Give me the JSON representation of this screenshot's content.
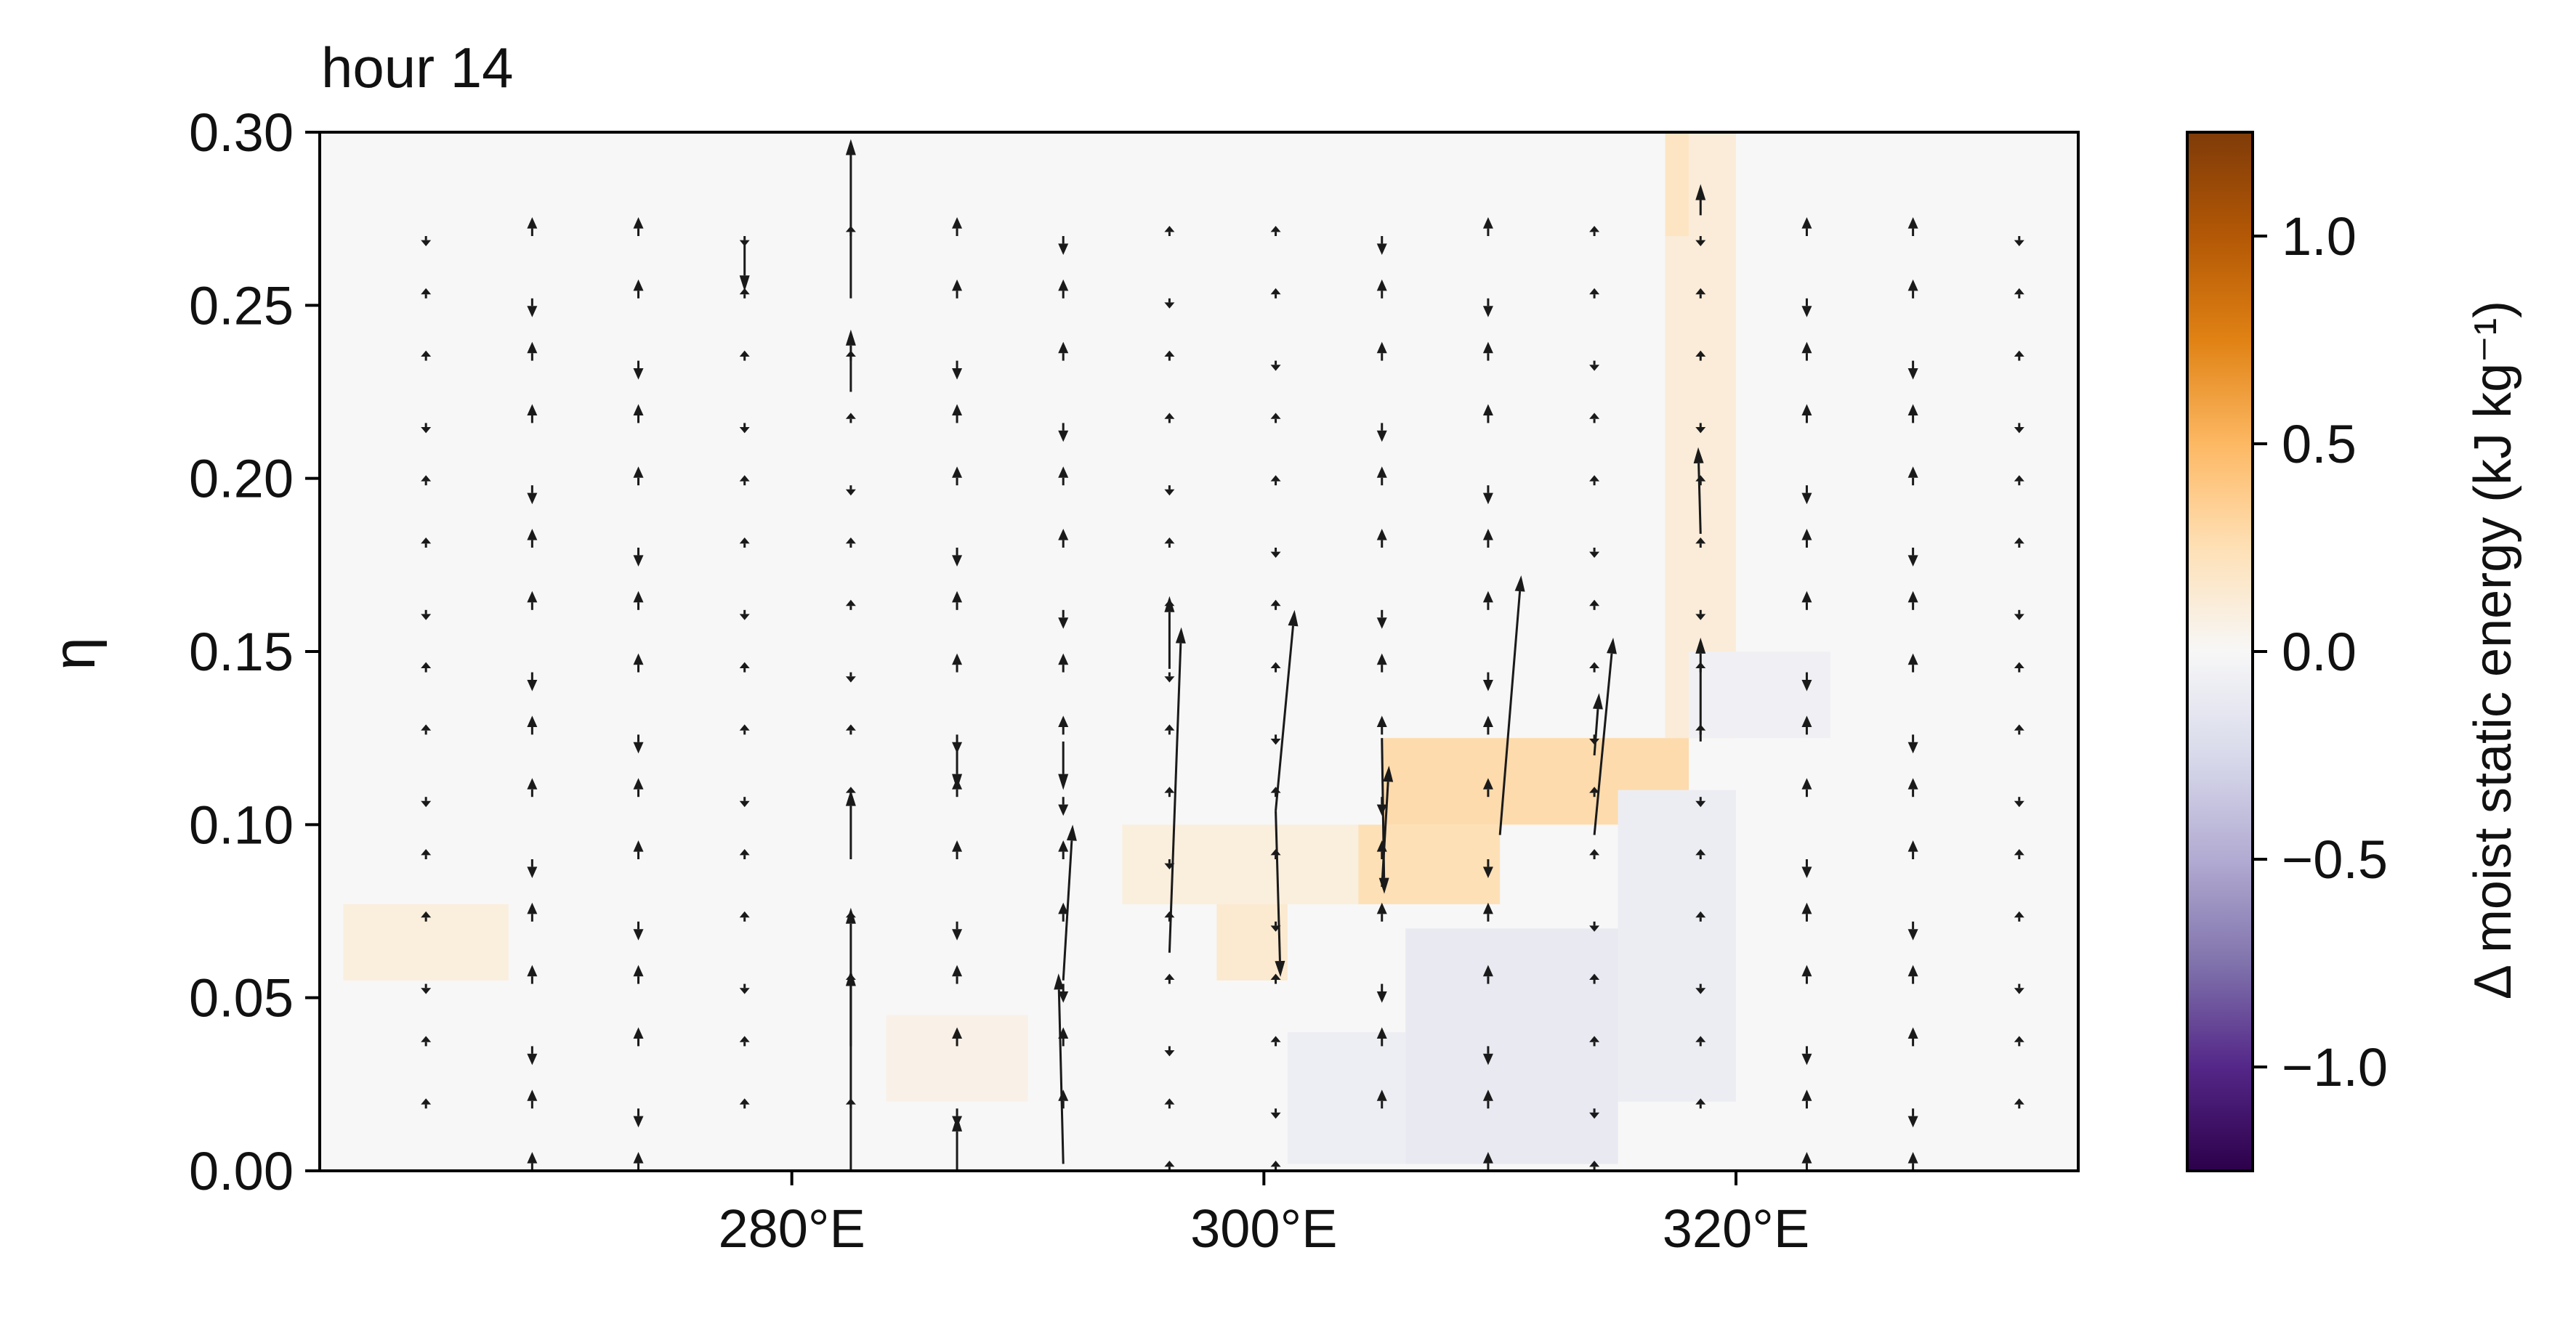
{
  "chart_data": {
    "type": "heatmap",
    "title": "hour 14",
    "xlabel": "",
    "ylabel": "η",
    "x_ticks": [
      "280°E",
      "300°E",
      "320°E"
    ],
    "x_tick_values": [
      280,
      300,
      320
    ],
    "y_ticks": [
      "0.00",
      "0.05",
      "0.10",
      "0.15",
      "0.20",
      "0.25",
      "0.30"
    ],
    "y_tick_values": [
      0.0,
      0.05,
      0.1,
      0.15,
      0.2,
      0.25,
      0.3
    ],
    "xlim": [
      260,
      334.5
    ],
    "ylim": [
      0.0,
      0.3
    ],
    "grid": false,
    "overlay": "quiver",
    "colorbar": {
      "label": "Δ moist static energy (kJ kg⁻¹)",
      "range": [
        -1.25,
        1.25
      ],
      "ticks": [
        "−1.0",
        "−0.5",
        "0.0",
        "0.5",
        "1.0"
      ],
      "tick_values": [
        -1.0,
        -0.5,
        0.0,
        0.5,
        1.0
      ],
      "colormap": "PuOr_r",
      "colors": [
        "#2d004b",
        "#542788",
        "#8073ac",
        "#b2abd2",
        "#d8daeb",
        "#f7f7f7",
        "#fee0b6",
        "#fdb863",
        "#e08214",
        "#b35806",
        "#7f3b08"
      ]
    },
    "heatmap_regions": [
      {
        "x0": 305,
        "x1": 318,
        "y0": 0.1,
        "y1": 0.125,
        "value": 0.28
      },
      {
        "x0": 304,
        "x1": 310,
        "y0": 0.077,
        "y1": 0.1,
        "value": 0.25
      },
      {
        "x0": 294,
        "x1": 304,
        "y0": 0.077,
        "y1": 0.1,
        "value": 0.1
      },
      {
        "x0": 298,
        "x1": 301,
        "y0": 0.055,
        "y1": 0.077,
        "value": 0.15
      },
      {
        "x0": 317,
        "x1": 320,
        "y0": 0.125,
        "y1": 0.3,
        "value": 0.12
      },
      {
        "x0": 317,
        "x1": 318,
        "y0": 0.27,
        "y1": 0.3,
        "value": 0.2
      },
      {
        "x0": 301,
        "x1": 306,
        "y0": 0.002,
        "y1": 0.04,
        "value": -0.08
      },
      {
        "x0": 306,
        "x1": 315,
        "y0": 0.002,
        "y1": 0.07,
        "value": -0.12
      },
      {
        "x0": 315,
        "x1": 320,
        "y0": 0.02,
        "y1": 0.11,
        "value": -0.09
      },
      {
        "x0": 318,
        "x1": 324,
        "y0": 0.125,
        "y1": 0.15,
        "value": -0.06
      },
      {
        "x0": 261,
        "x1": 268,
        "y0": 0.055,
        "y1": 0.077,
        "value": 0.1
      },
      {
        "x0": 284,
        "x1": 290,
        "y0": 0.02,
        "y1": 0.045,
        "value": 0.06
      }
    ],
    "quiver_x": [
      264.5,
      269,
      273.5,
      278,
      282.5,
      287,
      291.5,
      296,
      300.5,
      305,
      309.5,
      314,
      318.5,
      323,
      327.5,
      332
    ],
    "quiver_y": [
      0.0,
      0.018,
      0.036,
      0.054,
      0.072,
      0.09,
      0.108,
      0.126,
      0.144,
      0.162,
      0.18,
      0.198,
      0.216,
      0.234,
      0.252,
      0.27
    ],
    "quiver_arrows": [
      {
        "x": 282.5,
        "y": 0.0,
        "u": 0,
        "v": 0.058
      },
      {
        "x": 282.5,
        "y": 0.036,
        "u": 0,
        "v": 0.04
      },
      {
        "x": 282.5,
        "y": 0.09,
        "u": 0,
        "v": 0.02
      },
      {
        "x": 282.5,
        "y": 0.225,
        "u": 0,
        "v": 0.018
      },
      {
        "x": 282.5,
        "y": 0.252,
        "u": 0,
        "v": 0.046
      },
      {
        "x": 287,
        "y": 0.0,
        "u": 0,
        "v": 0.016
      },
      {
        "x": 287,
        "y": 0.124,
        "u": 0,
        "v": -0.014
      },
      {
        "x": 291.5,
        "y": 0.002,
        "u": -0.2,
        "v": 0.055
      },
      {
        "x": 291.5,
        "y": 0.055,
        "u": 0.4,
        "v": 0.045
      },
      {
        "x": 291.5,
        "y": 0.124,
        "u": 0,
        "v": -0.014
      },
      {
        "x": 296,
        "y": 0.063,
        "u": 0.5,
        "v": 0.094
      },
      {
        "x": 296,
        "y": 0.145,
        "u": 0,
        "v": 0.021
      },
      {
        "x": 300.5,
        "y": 0.104,
        "u": 0.8,
        "v": 0.058
      },
      {
        "x": 300.5,
        "y": 0.104,
        "u": 0.2,
        "v": -0.048
      },
      {
        "x": 305,
        "y": 0.125,
        "u": 0.1,
        "v": -0.045
      },
      {
        "x": 305,
        "y": 0.082,
        "u": 0.3,
        "v": 0.035
      },
      {
        "x": 310,
        "y": 0.097,
        "u": 0.9,
        "v": 0.075
      },
      {
        "x": 314,
        "y": 0.12,
        "u": 0.2,
        "v": 0.018
      },
      {
        "x": 314,
        "y": 0.097,
        "u": 0.8,
        "v": 0.057
      },
      {
        "x": 318.5,
        "y": 0.124,
        "u": 0,
        "v": 0.03
      },
      {
        "x": 318.5,
        "y": 0.184,
        "u": -0.1,
        "v": 0.025
      },
      {
        "x": 318.5,
        "y": 0.276,
        "u": 0,
        "v": 0.009
      },
      {
        "x": 278,
        "y": 0.268,
        "u": 0,
        "v": -0.014
      }
    ]
  }
}
